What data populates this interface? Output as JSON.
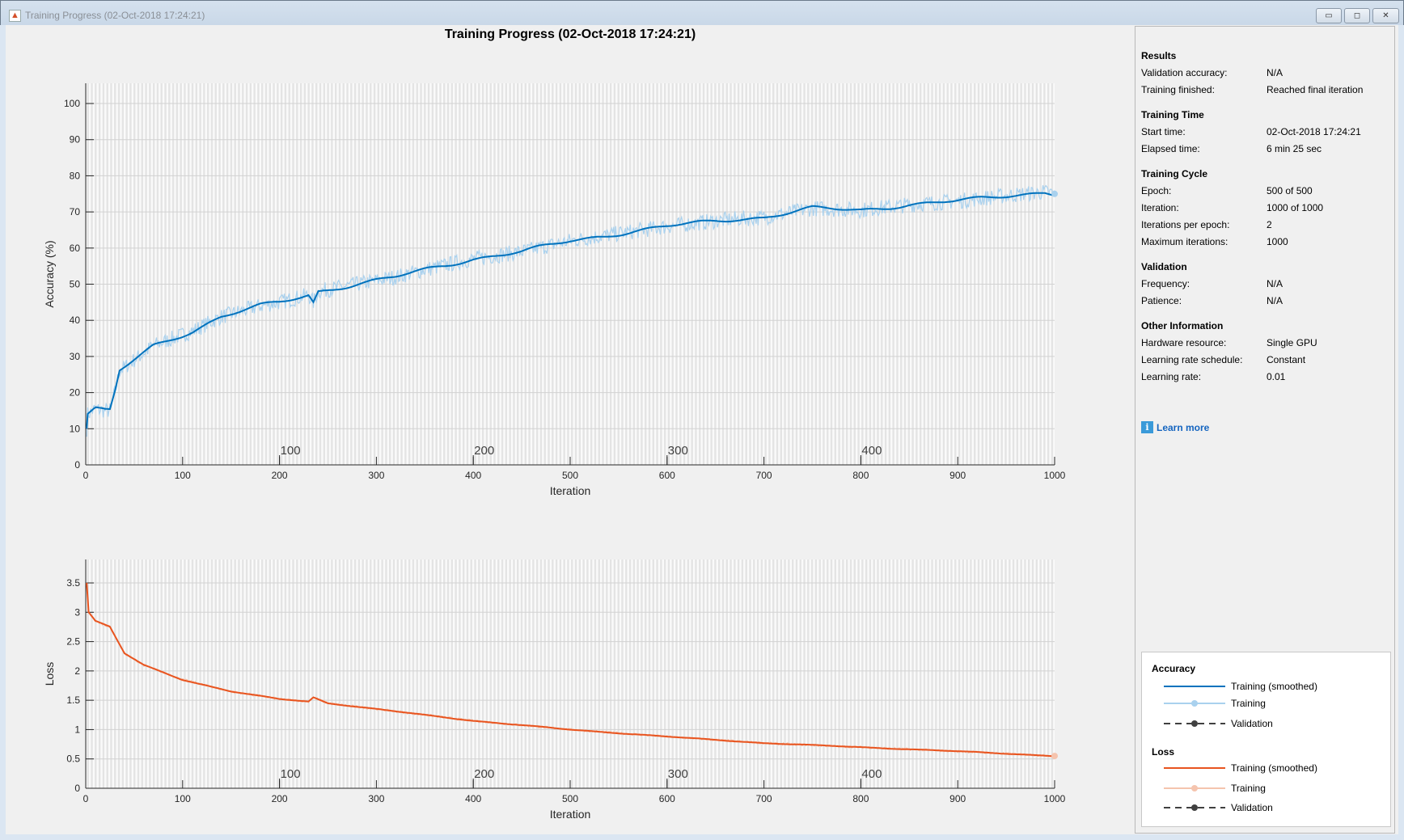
{
  "window": {
    "title": "Training Progress (02-Oct-2018 17:24:21)",
    "buttons": [
      "minimize",
      "maximize",
      "close"
    ]
  },
  "figure_title": "Training Progress (02-Oct-2018 17:24:21)",
  "panel": {
    "sections": [
      {
        "title": "Results",
        "rows": [
          {
            "label": "Validation accuracy:",
            "value": "N/A"
          },
          {
            "label": "Training finished:",
            "value": "Reached final iteration"
          }
        ]
      },
      {
        "title": "Training Time",
        "rows": [
          {
            "label": "Start time:",
            "value": "02-Oct-2018 17:24:21"
          },
          {
            "label": "Elapsed time:",
            "value": "6 min 25 sec"
          }
        ]
      },
      {
        "title": "Training Cycle",
        "rows": [
          {
            "label": "Epoch:",
            "value": "500 of 500"
          },
          {
            "label": "Iteration:",
            "value": "1000 of 1000"
          },
          {
            "label": "Iterations per epoch:",
            "value": "2"
          },
          {
            "label": "Maximum iterations:",
            "value": "1000"
          }
        ]
      },
      {
        "title": "Validation",
        "rows": [
          {
            "label": "Frequency:",
            "value": "N/A"
          },
          {
            "label": "Patience:",
            "value": "N/A"
          }
        ]
      },
      {
        "title": "Other Information",
        "rows": [
          {
            "label": "Hardware resource:",
            "value": "Single GPU"
          },
          {
            "label": "Learning rate schedule:",
            "value": "Constant"
          },
          {
            "label": "Learning rate:",
            "value": "0.01"
          }
        ]
      }
    ],
    "learn_more": "Learn more"
  },
  "legend": {
    "accuracy": {
      "title": "Accuracy",
      "items": [
        "Training (smoothed)",
        "Training",
        "Validation"
      ]
    },
    "loss": {
      "title": "Loss",
      "items": [
        "Training (smoothed)",
        "Training",
        "Validation"
      ]
    }
  },
  "colors": {
    "acc_smoothed": "#0072bd",
    "acc_raw": "#a9d1ee",
    "loss_smoothed": "#e8541f",
    "loss_raw": "#f5c4ae",
    "validation": "#404040"
  },
  "chart_data": [
    {
      "type": "line",
      "title": "Training Progress (02-Oct-2018 17:24:21)",
      "xlabel": "Iteration",
      "ylabel": "Accuracy (%)",
      "xlim": [
        0,
        1000
      ],
      "ylim": [
        0,
        105.6
      ],
      "xticks": [
        0,
        100,
        200,
        300,
        400,
        500,
        600,
        700,
        800,
        900,
        1000
      ],
      "yticks": [
        0,
        10,
        20,
        30,
        40,
        50,
        60,
        70,
        80,
        90,
        100
      ],
      "epoch_ticks": [
        100,
        200,
        300,
        400
      ],
      "iterations_per_epoch": 2,
      "grid": true,
      "series": [
        {
          "name": "Training (smoothed)",
          "x": [
            0,
            2,
            10,
            20,
            25,
            30,
            35,
            50,
            70,
            90,
            110,
            140,
            180,
            200,
            230,
            235,
            240,
            280,
            320,
            350,
            400,
            450,
            500,
            550,
            600,
            650,
            670,
            700,
            750,
            800,
            850,
            900,
            950,
            990,
            1000
          ],
          "values": [
            6,
            14,
            15.5,
            15,
            15,
            20,
            26,
            29,
            33,
            35,
            37,
            41,
            44,
            45,
            47,
            45,
            48,
            50,
            52,
            54,
            57,
            59,
            62,
            64,
            66,
            67.5,
            68,
            68.5,
            71,
            70.5,
            72,
            73,
            74.5,
            75.5,
            75
          ]
        }
      ]
    },
    {
      "type": "line",
      "xlabel": "Iteration",
      "ylabel": "Loss",
      "xlim": [
        0,
        1000
      ],
      "ylim": [
        0,
        3.9
      ],
      "xticks": [
        0,
        100,
        200,
        300,
        400,
        500,
        600,
        700,
        800,
        900,
        1000
      ],
      "yticks": [
        0,
        0.5,
        1,
        1.5,
        2,
        2.5,
        3,
        3.5
      ],
      "epoch_ticks": [
        100,
        200,
        300,
        400
      ],
      "grid": true,
      "series": [
        {
          "name": "Training (smoothed)",
          "x": [
            0,
            3,
            10,
            25,
            40,
            60,
            100,
            150,
            200,
            230,
            235,
            250,
            300,
            400,
            500,
            600,
            700,
            800,
            900,
            1000
          ],
          "values": [
            3.75,
            3.0,
            2.85,
            2.75,
            2.3,
            2.1,
            1.85,
            1.65,
            1.52,
            1.48,
            1.55,
            1.45,
            1.35,
            1.15,
            1.0,
            0.88,
            0.77,
            0.7,
            0.63,
            0.55
          ]
        }
      ]
    }
  ]
}
